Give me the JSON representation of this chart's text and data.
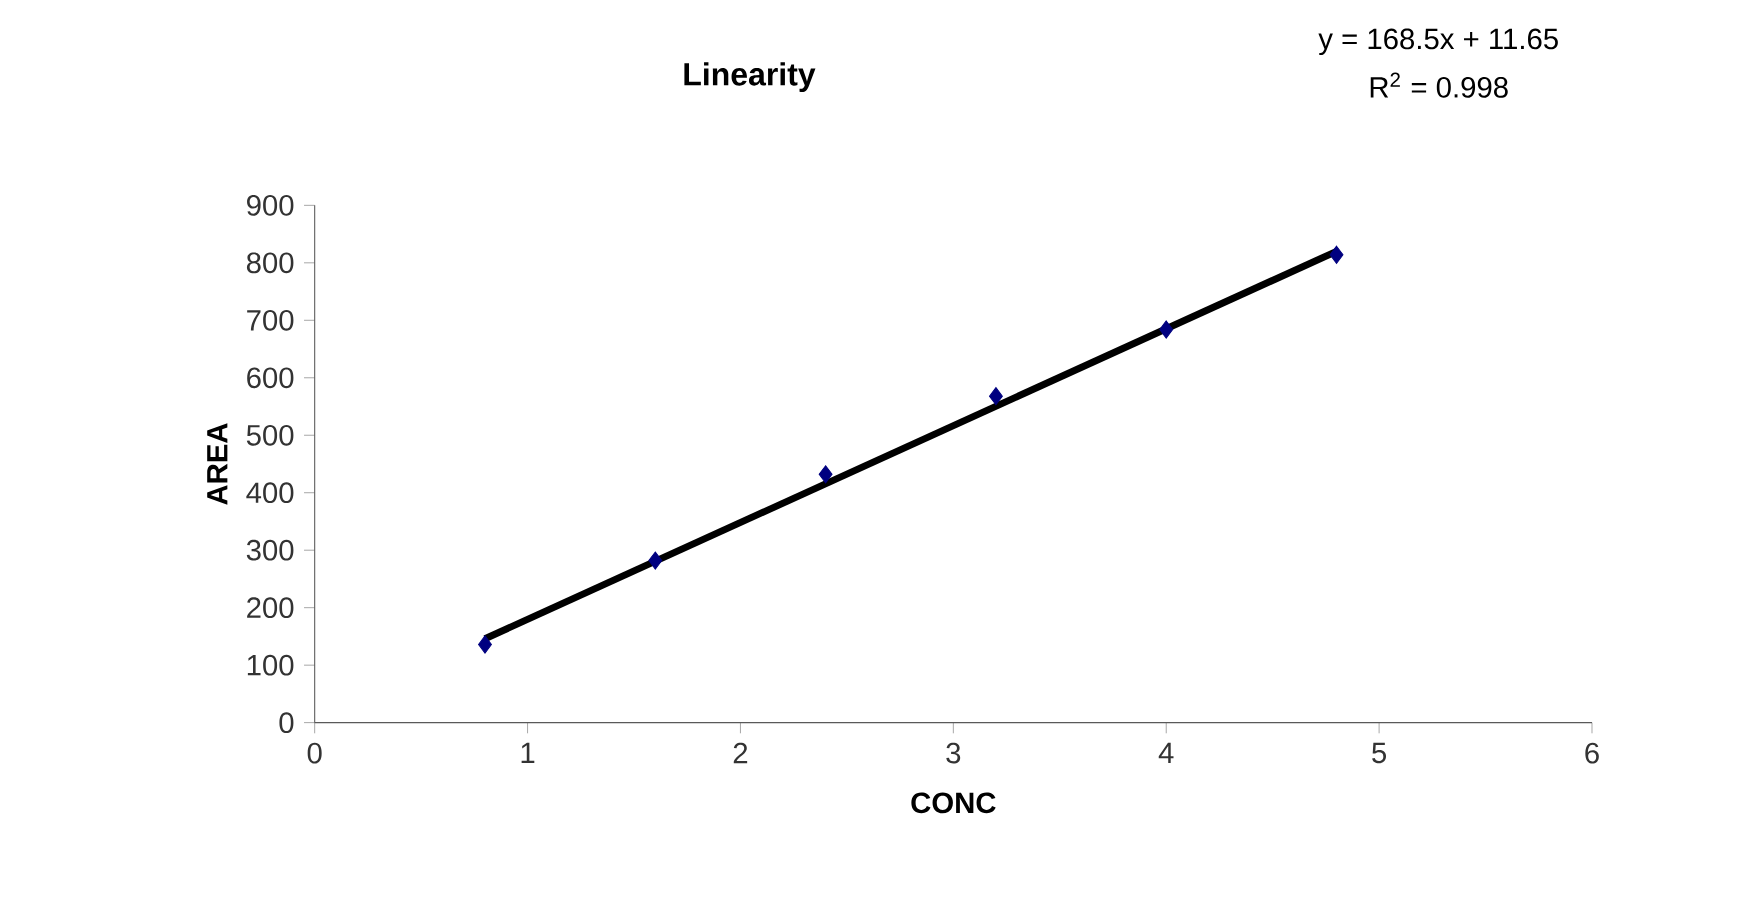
{
  "chart_data": {
    "type": "scatter",
    "title": "Linearity",
    "xlabel": "CONC",
    "ylabel": "AREA",
    "annotations": [
      "y = 168.5x + 11.65",
      "R$^{2}$ = 0.998"
    ],
    "series": [
      {
        "color": "#000080",
        "marker": "diamond",
        "x": [
          0.8,
          1.6,
          2.4,
          3.2,
          4.0,
          4.8
        ],
        "values": [
          136,
          282,
          432,
          568,
          684,
          814
        ]
      },
      {
        "type": "line",
        "color": "#000000",
        "marker": "none",
        "line_style": "solid",
        "x": [
          0.8,
          4.8
        ],
        "values": [
          146,
          820
        ]
      }
    ],
    "xlim": [
      0,
      6
    ],
    "xticks": [
      0,
      1,
      2,
      3,
      4,
      5,
      6
    ],
    "ylim": [
      0,
      900
    ],
    "yticks": [
      0,
      100,
      200,
      300,
      400,
      500,
      600,
      700,
      800,
      900
    ]
  }
}
